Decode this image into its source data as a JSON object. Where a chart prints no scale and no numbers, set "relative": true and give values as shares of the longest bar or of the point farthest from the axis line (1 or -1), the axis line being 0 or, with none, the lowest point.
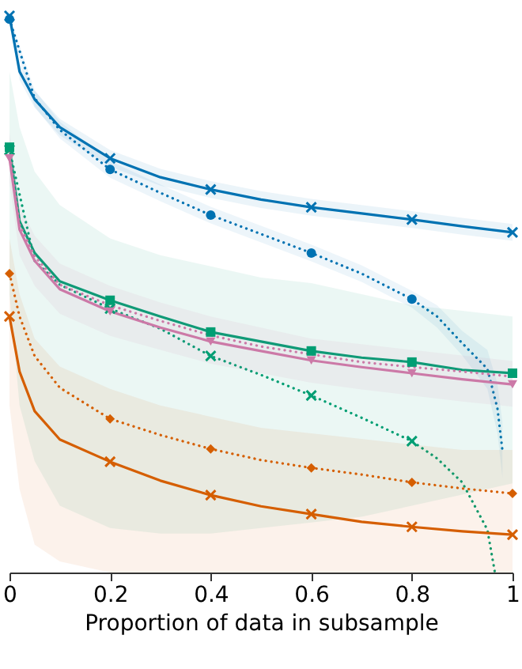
{
  "chart_data": {
    "type": "line",
    "relative": true,
    "xlabel": "Proportion of data in subsample",
    "xlim": [
      0,
      1
    ],
    "xticks": [
      {
        "value": 0,
        "label": "0"
      },
      0.2,
      0.4,
      0.6,
      0.8,
      {
        "value": 1,
        "label": "1"
      }
    ],
    "grid": false,
    "x": [
      0,
      0.02,
      0.05,
      0.1,
      0.2,
      0.3,
      0.4,
      0.5,
      0.6,
      0.7,
      0.8,
      0.9,
      1.0
    ],
    "series": [
      {
        "color": "#0072b2",
        "line_style": "solid",
        "marker": "none",
        "values": [
          1.0,
          0.9,
          0.85,
          0.8,
          0.744,
          0.71,
          0.688,
          0.67,
          0.656,
          0.645,
          0.634,
          0.622,
          0.611
        ],
        "lower": [
          0.985,
          0.885,
          0.835,
          0.785,
          0.729,
          0.695,
          0.673,
          0.655,
          0.641,
          0.63,
          0.619,
          0.607,
          0.596
        ],
        "upper": [
          1.0,
          0.915,
          0.865,
          0.815,
          0.759,
          0.725,
          0.703,
          0.685,
          0.671,
          0.66,
          0.649,
          0.637,
          0.626
        ]
      },
      {
        "color": "#0072b2",
        "line_style": "dotted",
        "marker": "none",
        "x": [
          0,
          0.05,
          0.1,
          0.2,
          0.3,
          0.4,
          0.5,
          0.6,
          0.7,
          0.8,
          0.85,
          0.9,
          0.95,
          0.97,
          0.98
        ],
        "values": [
          0.994,
          0.852,
          0.795,
          0.724,
          0.682,
          0.642,
          0.608,
          0.574,
          0.537,
          0.491,
          0.46,
          0.412,
          0.366,
          0.295,
          0.219
        ],
        "lower": [
          0.979,
          0.837,
          0.78,
          0.709,
          0.667,
          0.627,
          0.593,
          0.559,
          0.522,
          0.476,
          0.44,
          0.39,
          0.33,
          0.25,
          0.17
        ],
        "upper": [
          1.0,
          0.867,
          0.81,
          0.739,
          0.697,
          0.657,
          0.623,
          0.589,
          0.552,
          0.506,
          0.48,
          0.434,
          0.4,
          0.34,
          0.27
        ]
      },
      {
        "color": "#009e73",
        "line_style": "solid",
        "marker": "none",
        "values": [
          0.764,
          0.631,
          0.574,
          0.523,
          0.489,
          0.46,
          0.432,
          0.415,
          0.398,
          0.386,
          0.378,
          0.364,
          0.358
        ],
        "lower": [
          0.5,
          0.3,
          0.2,
          0.12,
          0.08,
          0.07,
          0.07,
          0.08,
          0.09,
          0.1,
          0.12,
          0.14,
          0.16
        ],
        "upper": [
          0.9,
          0.8,
          0.72,
          0.66,
          0.6,
          0.57,
          0.55,
          0.53,
          0.52,
          0.5,
          0.48,
          0.47,
          0.46
        ]
      },
      {
        "color": "#009e73",
        "line_style": "dotted",
        "marker": "none",
        "x": [
          0,
          0.05,
          0.1,
          0.2,
          0.3,
          0.4,
          0.5,
          0.6,
          0.7,
          0.8,
          0.85,
          0.9,
          0.95,
          0.965
        ],
        "values": [
          0.759,
          0.56,
          0.517,
          0.474,
          0.438,
          0.389,
          0.355,
          0.318,
          0.278,
          0.236,
          0.205,
          0.162,
          0.077,
          0
        ]
      },
      {
        "color": "#cc79a7",
        "line_style": "solid",
        "marker": "none",
        "values": [
          0.744,
          0.616,
          0.56,
          0.509,
          0.469,
          0.44,
          0.415,
          0.398,
          0.381,
          0.369,
          0.358,
          0.347,
          0.338
        ],
        "lower": [
          0.7,
          0.57,
          0.515,
          0.465,
          0.425,
          0.4,
          0.375,
          0.358,
          0.341,
          0.329,
          0.318,
          0.307,
          0.298
        ],
        "upper": [
          0.79,
          0.66,
          0.605,
          0.555,
          0.515,
          0.485,
          0.46,
          0.44,
          0.42,
          0.41,
          0.4,
          0.39,
          0.38
        ]
      },
      {
        "color": "#cc79a7",
        "line_style": "dotted",
        "marker": "none",
        "values": [
          0.756,
          0.625,
          0.568,
          0.517,
          0.48,
          0.452,
          0.426,
          0.406,
          0.392,
          0.378,
          0.369,
          0.361,
          0.352
        ]
      },
      {
        "color": "#d55e00",
        "line_style": "solid",
        "marker": "none",
        "values": [
          0.46,
          0.361,
          0.29,
          0.239,
          0.199,
          0.165,
          0.139,
          0.119,
          0.105,
          0.091,
          0.082,
          0.074,
          0.068
        ],
        "lower": [
          0.3,
          0.15,
          0.05,
          0.02,
          0,
          0,
          0,
          0,
          0,
          0,
          0,
          0,
          0
        ],
        "upper": [
          0.6,
          0.5,
          0.42,
          0.37,
          0.33,
          0.3,
          0.28,
          0.26,
          0.25,
          0.24,
          0.23,
          0.22,
          0.22
        ]
      },
      {
        "color": "#d55e00",
        "line_style": "dotted",
        "marker": "none",
        "values": [
          0.537,
          0.46,
          0.389,
          0.332,
          0.276,
          0.247,
          0.222,
          0.202,
          0.188,
          0.176,
          0.162,
          0.151,
          0.142
        ]
      },
      {
        "type": "scatter",
        "color": "#0072b2",
        "marker": "cross",
        "x": [
          0,
          0.2,
          0.4,
          0.6,
          0.8,
          1.0
        ],
        "values": [
          1.0,
          0.744,
          0.688,
          0.656,
          0.634,
          0.611
        ]
      },
      {
        "type": "scatter",
        "color": "#0072b2",
        "marker": "circle",
        "x": [
          0,
          0.2,
          0.4,
          0.6,
          0.8
        ],
        "values": [
          0.994,
          0.724,
          0.642,
          0.574,
          0.491
        ]
      },
      {
        "type": "scatter",
        "color": "#009e73",
        "marker": "square",
        "x": [
          0,
          0.2,
          0.4,
          0.6,
          0.8,
          1.0
        ],
        "values": [
          0.764,
          0.489,
          0.432,
          0.398,
          0.378,
          0.358
        ]
      },
      {
        "type": "scatter",
        "color": "#009e73",
        "marker": "cross",
        "x": [
          0,
          0.2,
          0.4,
          0.6,
          0.8
        ],
        "values": [
          0.759,
          0.474,
          0.389,
          0.318,
          0.236
        ]
      },
      {
        "type": "scatter",
        "color": "#cc79a7",
        "marker": "triangle",
        "x": [
          0,
          0.2,
          0.4,
          0.6,
          0.8,
          1.0
        ],
        "values": [
          0.744,
          0.469,
          0.415,
          0.381,
          0.358,
          0.338
        ]
      },
      {
        "type": "scatter",
        "color": "#d55e00",
        "marker": "cross",
        "x": [
          0,
          0.2,
          0.4,
          0.6,
          0.8,
          1.0
        ],
        "values": [
          0.46,
          0.199,
          0.139,
          0.105,
          0.082,
          0.068
        ]
      },
      {
        "type": "scatter",
        "color": "#d55e00",
        "marker": "diamond",
        "x": [
          0,
          0.2,
          0.4,
          0.6,
          0.8,
          1.0
        ],
        "values": [
          0.537,
          0.276,
          0.222,
          0.188,
          0.162,
          0.142
        ]
      }
    ]
  }
}
